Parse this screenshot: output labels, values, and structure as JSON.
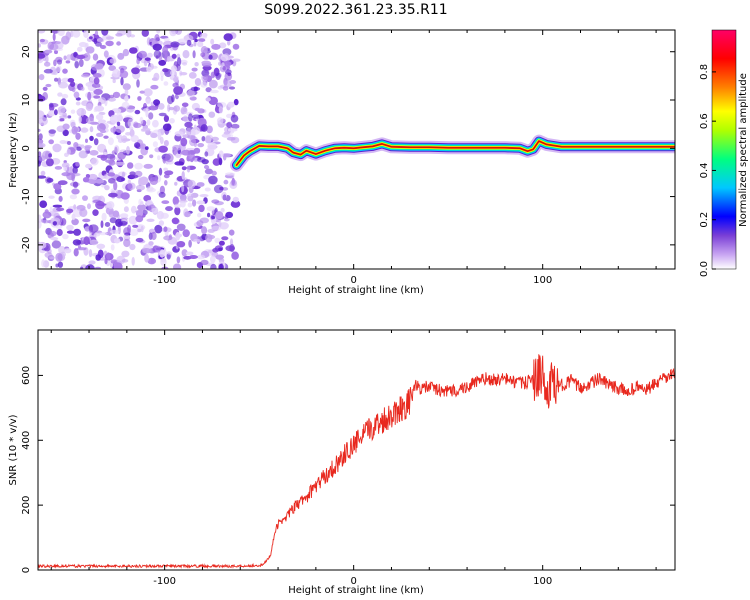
{
  "title": "S099.2022.361.23.35.R11",
  "chart_data": [
    {
      "type": "heatmap",
      "title": "S099.2022.361.23.35.R11",
      "xlabel": "Height of straight line (km)",
      "ylabel": "Frequency (Hz)",
      "xlim": [
        -167,
        170
      ],
      "ylim": [
        -25,
        24.5
      ],
      "x_ticks": [
        -100,
        0,
        100
      ],
      "y_ticks": [
        -20,
        -10,
        0,
        10,
        20
      ],
      "colorbar": {
        "label": "Normalized spectral amplitude",
        "range": [
          0,
          0.97
        ],
        "ticks": [
          0.0,
          0.2,
          0.4,
          0.6,
          0.8
        ],
        "colormap": [
          "#ffffff",
          "#c9a6f2",
          "#7a3fd6",
          "#0000ff",
          "#00c8ff",
          "#00ff80",
          "#b0ff00",
          "#ffff00",
          "#ff8000",
          "#ff0000",
          "#ff0066"
        ]
      },
      "noise_region": {
        "x_range": [
          -167,
          -62
        ],
        "y_range": [
          -25,
          24.5
        ]
      },
      "carrier_track": {
        "x": [
          -62,
          -58,
          -55,
          -50,
          -45,
          -40,
          -35,
          -32,
          -28,
          -25,
          -20,
          -15,
          -10,
          -5,
          0,
          5,
          10,
          15,
          20,
          30,
          40,
          50,
          60,
          70,
          80,
          88,
          92,
          95,
          98,
          102,
          110,
          120,
          130,
          140,
          150,
          160,
          170
        ],
        "y": [
          -3.5,
          -1.5,
          -0.6,
          0.5,
          0.4,
          0.4,
          0.0,
          -0.9,
          -1.3,
          -0.5,
          -1.2,
          -0.5,
          0.0,
          0.1,
          0.0,
          0.2,
          0.4,
          0.9,
          0.3,
          0.2,
          0.2,
          0.1,
          0.1,
          0.1,
          0.1,
          0.0,
          -0.6,
          -0.2,
          1.5,
          0.8,
          0.3,
          0.3,
          0.3,
          0.3,
          0.3,
          0.3,
          0.3
        ]
      }
    },
    {
      "type": "line",
      "xlabel": "Height of straight line (km)",
      "ylabel": "SNR (10 * v/v)",
      "xlim": [
        -167,
        170
      ],
      "ylim": [
        0,
        740
      ],
      "x_ticks": [
        -100,
        0,
        100
      ],
      "y_ticks": [
        0,
        200,
        400,
        600
      ],
      "line_color": "#e8281e",
      "series": [
        {
          "x": [
            -167,
            -140,
            -120,
            -100,
            -80,
            -60,
            -48,
            -44,
            -42,
            -40,
            -35,
            -30,
            -25,
            -20,
            -15,
            -10,
            -5,
            0,
            5,
            10,
            15,
            20,
            25,
            30,
            32,
            35,
            40,
            45,
            50,
            55,
            60,
            65,
            70,
            75,
            80,
            85,
            90,
            95,
            100,
            102,
            104,
            106,
            108,
            110,
            115,
            120,
            125,
            130,
            135,
            140,
            145,
            150,
            155,
            160,
            165,
            170
          ],
          "y": [
            12,
            12,
            12,
            12,
            12,
            12,
            15,
            45,
            110,
            140,
            170,
            200,
            225,
            260,
            290,
            320,
            355,
            385,
            415,
            440,
            460,
            480,
            500,
            520,
            570,
            560,
            565,
            555,
            550,
            555,
            565,
            580,
            590,
            585,
            590,
            580,
            575,
            590,
            600,
            520,
            590,
            560,
            565,
            570,
            585,
            560,
            575,
            590,
            570,
            560,
            550,
            565,
            555,
            575,
            590,
            610
          ]
        }
      ]
    }
  ]
}
